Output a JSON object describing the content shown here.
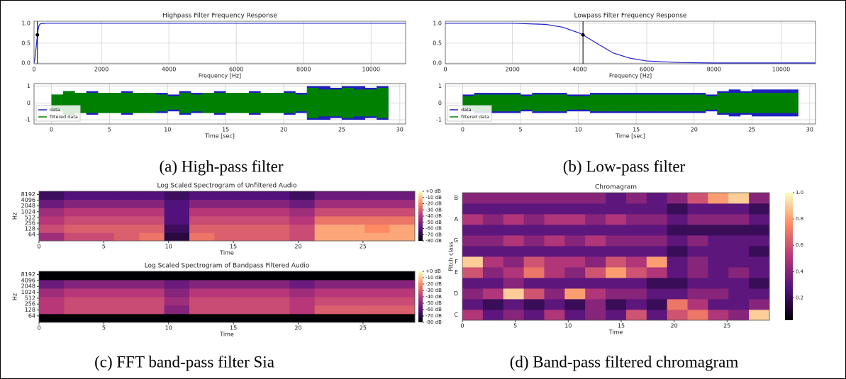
{
  "captions": [
    "(a) High-pass filter",
    "(b) Low-pass filter",
    "(c) FFT band-pass filter Sia",
    "(d) Band-pass filtered chromagram"
  ],
  "chart_data": [
    {
      "type": "line",
      "title": "Highpass Filter Frequency Response",
      "x_label": "Frequency [Hz]",
      "xlim": [
        0,
        11025
      ],
      "ylim": [
        -0.02,
        1.05
      ],
      "xticks": [
        0,
        2000,
        4000,
        6000,
        8000,
        10000
      ],
      "yticks": [
        {
          "value": 0,
          "label": "0.0"
        },
        {
          "value": 0.5,
          "label": "0.5"
        },
        {
          "value": 1,
          "label": "1.0"
        }
      ],
      "grid": true,
      "series": [
        {
          "color": "#2020d0",
          "x": [
            0,
            25,
            50,
            75,
            100,
            125,
            150,
            200,
            400,
            1000,
            11025
          ],
          "values": [
            0,
            0.1,
            0.3,
            0.5,
            0.707,
            0.85,
            0.95,
            0.99,
            1,
            1,
            1
          ]
        }
      ],
      "marker": {
        "x": 100,
        "y": 0.707,
        "color": "#000000"
      }
    },
    {
      "type": "envelope",
      "x_label": "Time [sec]",
      "xlim": [
        -1.5,
        30.5
      ],
      "ylim": [
        -1.25,
        1.15
      ],
      "xticks": [
        0,
        5,
        10,
        15,
        20,
        25,
        30
      ],
      "yticks": [
        -1,
        0,
        1
      ],
      "grid": true,
      "legend": "lower left",
      "x": [
        0,
        1,
        2,
        3,
        4,
        5,
        6,
        7,
        8,
        9,
        10,
        11,
        12,
        13,
        14,
        15,
        16,
        17,
        18,
        19,
        20,
        21,
        22,
        23,
        24,
        25,
        26,
        27,
        28
      ],
      "series": [
        {
          "name": "data",
          "color": "#1f1fbf",
          "values": [
            0.5,
            0.7,
            0.6,
            0.7,
            0.6,
            0.6,
            0.7,
            0.6,
            0.6,
            0.6,
            0.5,
            0.7,
            0.6,
            0.6,
            0.7,
            0.6,
            0.6,
            0.7,
            0.6,
            0.6,
            0.7,
            0.6,
            1.0,
            1.0,
            0.9,
            1.0,
            1.0,
            0.9,
            1.0
          ]
        },
        {
          "name": "filtered data",
          "color": "#008000",
          "values": [
            0.5,
            0.7,
            0.6,
            0.6,
            0.6,
            0.6,
            0.6,
            0.6,
            0.6,
            0.5,
            0.4,
            0.6,
            0.5,
            0.6,
            0.6,
            0.6,
            0.6,
            0.6,
            0.6,
            0.6,
            0.6,
            0.5,
            0.9,
            0.8,
            0.8,
            0.9,
            0.8,
            0.8,
            0.9
          ]
        }
      ]
    },
    {
      "type": "line",
      "title": "Lowpass Filter Frequency Response",
      "x_label": "Frequency [Hz]",
      "xlim": [
        0,
        11025
      ],
      "ylim": [
        -0.02,
        1.05
      ],
      "xticks": [
        0,
        2000,
        4000,
        6000,
        8000,
        10000
      ],
      "yticks": [
        {
          "value": 0,
          "label": "0.0"
        },
        {
          "value": 0.5,
          "label": "0.5"
        },
        {
          "value": 1,
          "label": "1.0"
        }
      ],
      "grid": true,
      "series": [
        {
          "color": "#2020d0",
          "x": [
            0,
            2000,
            3000,
            3500,
            4000,
            4100,
            4500,
            5000,
            5500,
            6000,
            7000,
            8000,
            11025
          ],
          "values": [
            1,
            1,
            0.97,
            0.9,
            0.75,
            0.707,
            0.5,
            0.25,
            0.12,
            0.05,
            0.01,
            0,
            0
          ]
        }
      ],
      "marker": {
        "x": 4100,
        "y": 0.707,
        "color": "#000000"
      }
    },
    {
      "type": "envelope",
      "x_label": "Time [sec]",
      "xlim": [
        -1.5,
        30.5
      ],
      "ylim": [
        -1.25,
        1.15
      ],
      "xticks": [
        0,
        5,
        10,
        15,
        20,
        25,
        30
      ],
      "yticks": [
        -1,
        0,
        1
      ],
      "grid": true,
      "legend": "lower left",
      "x": [
        0,
        1,
        2,
        3,
        4,
        5,
        6,
        7,
        8,
        9,
        10,
        11,
        12,
        13,
        14,
        15,
        16,
        17,
        18,
        19,
        20,
        21,
        22,
        23,
        24,
        25,
        26,
        27,
        28
      ],
      "series": [
        {
          "name": "data",
          "color": "#1f1fbf",
          "values": [
            0.5,
            0.6,
            0.6,
            0.6,
            0.6,
            0.5,
            0.6,
            0.6,
            0.6,
            0.5,
            0.5,
            0.6,
            0.6,
            0.6,
            0.6,
            0.6,
            0.6,
            0.6,
            0.6,
            0.6,
            0.6,
            0.5,
            0.7,
            0.8,
            0.7,
            0.8,
            0.8,
            0.8,
            0.8
          ]
        },
        {
          "name": "filtered data",
          "color": "#008000",
          "values": [
            0.4,
            0.5,
            0.5,
            0.5,
            0.5,
            0.4,
            0.5,
            0.5,
            0.5,
            0.4,
            0.4,
            0.5,
            0.5,
            0.5,
            0.5,
            0.5,
            0.5,
            0.5,
            0.5,
            0.5,
            0.5,
            0.4,
            0.6,
            0.6,
            0.6,
            0.6,
            0.6,
            0.6,
            0.6
          ]
        }
      ]
    },
    {
      "type": "heatmap",
      "title": "Log Scaled Spectrogram of Unfiltered Audio",
      "x_label": "Time",
      "y_label": "Hz",
      "xlim": [
        0,
        29
      ],
      "xticks": [
        0,
        5,
        10,
        15,
        20,
        25
      ],
      "y_scale": "log",
      "ylim": [
        30,
        12000
      ],
      "yticks": [
        64,
        128,
        256,
        512,
        1024,
        2048,
        4096,
        8192
      ],
      "colormap": "magma",
      "clim": [
        -80,
        0
      ],
      "colorbar_ticks": [
        {
          "value": 0,
          "label": "+0 dB"
        },
        {
          "value": -10,
          "label": "-10 dB"
        },
        {
          "value": -20,
          "label": "-20 dB"
        },
        {
          "value": -30,
          "label": "-30 dB"
        },
        {
          "value": -40,
          "label": "-40 dB"
        },
        {
          "value": -50,
          "label": "-50 dB"
        },
        {
          "value": -60,
          "label": "-60 dB"
        },
        {
          "value": -70,
          "label": "-70 dB"
        },
        {
          "value": -80,
          "label": "-80 dB"
        }
      ],
      "z": [
        [
          -45,
          -35,
          -35,
          -30,
          -25,
          -70,
          -25,
          -30,
          -30,
          -30,
          -35,
          -15,
          -15,
          -15,
          -15
        ],
        [
          -35,
          -30,
          -30,
          -30,
          -30,
          -65,
          -30,
          -30,
          -30,
          -30,
          -35,
          -15,
          -15,
          -20,
          -15
        ],
        [
          -40,
          -35,
          -35,
          -35,
          -35,
          -60,
          -35,
          -35,
          -35,
          -35,
          -40,
          -25,
          -25,
          -25,
          -25
        ],
        [
          -45,
          -40,
          -40,
          -40,
          -40,
          -60,
          -40,
          -40,
          -40,
          -40,
          -45,
          -35,
          -35,
          -35,
          -35
        ],
        [
          -55,
          -50,
          -50,
          -50,
          -50,
          -60,
          -50,
          -50,
          -50,
          -50,
          -55,
          -45,
          -45,
          -45,
          -45
        ],
        [
          -65,
          -60,
          -60,
          -60,
          -60,
          -65,
          -60,
          -60,
          -60,
          -60,
          -65,
          -55,
          -55,
          -55,
          -55
        ]
      ]
    },
    {
      "type": "heatmap",
      "title": "Log Scaled Spectrogram of Bandpass Filtered Audio",
      "x_label": "Time",
      "y_label": "Hz",
      "xlim": [
        0,
        29
      ],
      "xticks": [
        0,
        5,
        10,
        15,
        20,
        25
      ],
      "y_scale": "log",
      "ylim": [
        30,
        12000
      ],
      "yticks": [
        64,
        128,
        256,
        512,
        1024,
        2048,
        4096,
        8192
      ],
      "colormap": "magma",
      "clim": [
        -80,
        0
      ],
      "colorbar_ticks": [
        {
          "value": 0,
          "label": "+0 dB"
        },
        {
          "value": -10,
          "label": "-10 dB"
        },
        {
          "value": -20,
          "label": "-20 dB"
        },
        {
          "value": -30,
          "label": "-30 dB"
        },
        {
          "value": -40,
          "label": "-40 dB"
        },
        {
          "value": -50,
          "label": "-50 dB"
        },
        {
          "value": -60,
          "label": "-60 dB"
        },
        {
          "value": -70,
          "label": "-70 dB"
        },
        {
          "value": -80,
          "label": "-80 dB"
        }
      ],
      "z": [
        [
          -80,
          -80,
          -80,
          -80,
          -80,
          -80,
          -80,
          -80,
          -80,
          -80,
          -80,
          -80,
          -80,
          -80,
          -80
        ],
        [
          -40,
          -35,
          -35,
          -35,
          -35,
          -50,
          -35,
          -35,
          -35,
          -35,
          -40,
          -30,
          -30,
          -30,
          -30
        ],
        [
          -40,
          -35,
          -35,
          -35,
          -35,
          -45,
          -35,
          -35,
          -35,
          -35,
          -40,
          -35,
          -35,
          -35,
          -35
        ],
        [
          -45,
          -40,
          -40,
          -40,
          -40,
          -50,
          -40,
          -40,
          -40,
          -40,
          -45,
          -40,
          -40,
          -40,
          -40
        ],
        [
          -55,
          -50,
          -50,
          -50,
          -50,
          -55,
          -50,
          -50,
          -50,
          -50,
          -55,
          -50,
          -50,
          -50,
          -50
        ],
        [
          -80,
          -80,
          -80,
          -80,
          -80,
          -80,
          -80,
          -80,
          -80,
          -80,
          -80,
          -80,
          -80,
          -80,
          -80
        ]
      ]
    },
    {
      "type": "heatmap",
      "title": "Chromagram",
      "x_label": "Time",
      "y_label": "Pitch class",
      "xlim": [
        0,
        29
      ],
      "xticks": [
        0,
        5,
        10,
        15,
        20,
        25
      ],
      "categories": [
        "C",
        null,
        "D",
        null,
        "E",
        "F",
        null,
        "G",
        null,
        "A",
        null,
        "B"
      ],
      "colormap": "magma",
      "clim": [
        0.03,
        1
      ],
      "colorbar_ticks": [
        0.2,
        0.4,
        0.6,
        0.8,
        {
          "value": 1,
          "label": "1.0"
        }
      ],
      "z": [
        [
          0.5,
          0.3,
          0.4,
          0.3,
          0.5,
          0.3,
          0.4,
          0.3,
          0.6,
          0.3,
          0.6,
          0.7,
          0.5,
          0.4,
          0.9
        ],
        [
          0.3,
          0.2,
          0.3,
          0.2,
          0.3,
          0.2,
          0.4,
          0.2,
          0.3,
          0.2,
          0.7,
          0.5,
          0.3,
          0.3,
          0.4
        ],
        [
          0.4,
          0.5,
          0.9,
          0.6,
          0.4,
          0.8,
          0.5,
          0.4,
          0.4,
          0.3,
          0.3,
          0.4,
          0.4,
          0.3,
          0.3
        ],
        [
          0.3,
          0.3,
          0.4,
          0.3,
          0.3,
          0.3,
          0.3,
          0.3,
          0.3,
          0.2,
          0.2,
          0.3,
          0.3,
          0.3,
          0.2
        ],
        [
          0.6,
          0.4,
          0.5,
          0.7,
          0.5,
          0.4,
          0.6,
          0.8,
          0.6,
          0.5,
          0.3,
          0.4,
          0.3,
          0.4,
          0.3
        ],
        [
          0.9,
          0.5,
          0.4,
          0.6,
          0.5,
          0.5,
          0.4,
          0.6,
          0.5,
          0.8,
          0.3,
          0.4,
          0.3,
          0.3,
          0.3
        ],
        [
          0.3,
          0.3,
          0.3,
          0.3,
          0.3,
          0.3,
          0.3,
          0.3,
          0.3,
          0.3,
          0.2,
          0.3,
          0.3,
          0.3,
          0.2
        ],
        [
          0.4,
          0.4,
          0.5,
          0.4,
          0.5,
          0.4,
          0.5,
          0.4,
          0.4,
          0.4,
          0.3,
          0.4,
          0.3,
          0.3,
          0.3
        ],
        [
          0.3,
          0.3,
          0.3,
          0.3,
          0.3,
          0.3,
          0.3,
          0.3,
          0.3,
          0.3,
          0.2,
          0.2,
          0.2,
          0.2,
          0.2
        ],
        [
          0.5,
          0.4,
          0.5,
          0.4,
          0.5,
          0.5,
          0.4,
          0.5,
          0.4,
          0.4,
          0.3,
          0.4,
          0.4,
          0.4,
          0.3
        ],
        [
          0.3,
          0.3,
          0.3,
          0.3,
          0.3,
          0.3,
          0.3,
          0.3,
          0.3,
          0.3,
          0.2,
          0.3,
          0.3,
          0.3,
          0.2
        ],
        [
          0.4,
          0.4,
          0.4,
          0.4,
          0.4,
          0.4,
          0.4,
          0.3,
          0.4,
          0.3,
          0.4,
          0.6,
          0.8,
          0.9,
          0.4
        ]
      ]
    }
  ]
}
